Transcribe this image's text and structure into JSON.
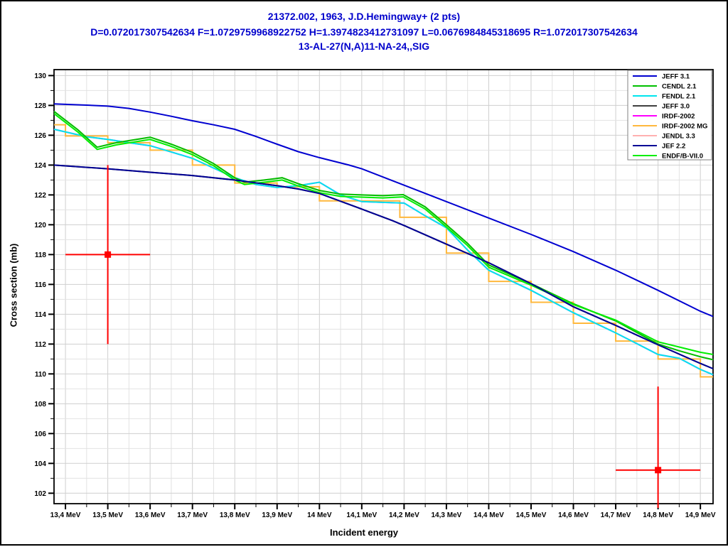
{
  "window": {
    "background": "#FFFFFF",
    "frame_color": "#000000"
  },
  "titles": {
    "line1": "21372.002, 1963, J.D.Hemingway+ (2 pts)",
    "line2": "D=0.072017307542634 F=1.0729759968922752 H=1.3974823412731097 L=0.0676984845318695 R=1.072017307542634",
    "line3": "13-AL-27(N,A)11-NA-24,,SIG",
    "color": "#0000CC"
  },
  "chart_data": {
    "type": "line",
    "title": "21372.002, 1963, J.D.Hemingway+ (2 pts)",
    "xlabel": "Incident energy",
    "ylabel": "Cross section (mb)",
    "xlim": [
      13.373,
      14.93
    ],
    "ylim": [
      101.3,
      130.4
    ],
    "x_unit": "MeV",
    "x_major_ticks": [
      13.4,
      13.5,
      13.6,
      13.7,
      13.8,
      13.9,
      14.0,
      14.1,
      14.2,
      14.3,
      14.4,
      14.5,
      14.6,
      14.7,
      14.8,
      14.9
    ],
    "x_tick_labels": [
      "13,4 MeV",
      "13,5 MeV",
      "13,6 MeV",
      "13,7 MeV",
      "13,8 MeV",
      "13,9 MeV",
      "14 MeV",
      "14,1 MeV",
      "14,2 MeV",
      "14,3 MeV",
      "14,4 MeV",
      "14,5 MeV",
      "14,6 MeV",
      "14,7 MeV",
      "14,8 MeV",
      "14,9 MeV"
    ],
    "x_minor_step": 0.05,
    "y_major_ticks": [
      130,
      128,
      126,
      124,
      122,
      120,
      118,
      116,
      114,
      112,
      110,
      108,
      106,
      104,
      102
    ],
    "y_tick_labels": [
      "130",
      "128",
      "126",
      "124",
      "122",
      "120",
      "118",
      "116",
      "114",
      "112",
      "110",
      "108",
      "106",
      "104",
      "102"
    ],
    "y_minor_step": 1,
    "grid": {
      "on": true,
      "minor_color": "#E2E2E2",
      "major_color": "#CFCFCF"
    },
    "legend": {
      "position": "top-right",
      "background": "#FFFFFF",
      "border_color": "#808080",
      "entries": [
        {
          "label": "JEFF 3.1",
          "color": "#0000D0"
        },
        {
          "label": "CENDL 2.1",
          "color": "#00C000"
        },
        {
          "label": "FENDL 2.1",
          "color": "#00E5EE"
        },
        {
          "label": "JEFF 3.0",
          "color": "#404040"
        },
        {
          "label": "IRDF-2002",
          "color": "#FF00FF"
        },
        {
          "label": "IRDF-2002 MG",
          "color": "#FFB83D"
        },
        {
          "label": "JENDL 3.3",
          "color": "#FFB0B0"
        },
        {
          "label": "JEF 2.2",
          "color": "#000095"
        },
        {
          "label": "ENDF/B-VII.0",
          "color": "#00EE00"
        }
      ]
    },
    "series": [
      {
        "name": "JEFF 3.0",
        "color": "#404040",
        "type": "line",
        "note": "coincides with JEF 2.2",
        "points": [
          [
            13.373,
            124.0
          ],
          [
            13.5,
            123.75
          ],
          [
            13.6,
            123.52
          ],
          [
            13.7,
            123.3
          ],
          [
            13.8,
            123.0
          ],
          [
            13.9,
            122.62
          ],
          [
            13.95,
            122.4
          ],
          [
            14.0,
            122.1
          ],
          [
            14.1,
            121.05
          ],
          [
            14.173,
            120.27
          ],
          [
            14.2,
            119.95
          ],
          [
            14.3,
            118.7
          ],
          [
            14.4,
            117.45
          ],
          [
            14.5,
            116.05
          ],
          [
            14.6,
            114.5
          ],
          [
            14.7,
            113.25
          ],
          [
            14.8,
            111.95
          ],
          [
            14.9,
            110.7
          ],
          [
            14.93,
            110.35
          ]
        ]
      },
      {
        "name": "IRDF-2002",
        "color": "#FF00FF",
        "type": "line",
        "note": "coincides with FENDL 2.1",
        "points": [
          [
            13.373,
            126.4
          ],
          [
            13.45,
            125.9
          ],
          [
            13.5,
            125.72
          ],
          [
            13.55,
            125.5
          ],
          [
            13.6,
            125.3
          ],
          [
            13.65,
            124.88
          ],
          [
            13.7,
            124.45
          ],
          [
            13.75,
            123.8
          ],
          [
            13.8,
            123.15
          ],
          [
            13.85,
            122.7
          ],
          [
            13.9,
            122.5
          ],
          [
            13.95,
            122.62
          ],
          [
            14.0,
            122.85
          ],
          [
            14.05,
            122.0
          ],
          [
            14.1,
            121.55
          ],
          [
            14.15,
            121.5
          ],
          [
            14.2,
            121.45
          ],
          [
            14.25,
            120.6
          ],
          [
            14.3,
            119.8
          ],
          [
            14.35,
            118.3
          ],
          [
            14.4,
            116.95
          ],
          [
            14.5,
            115.6
          ],
          [
            14.6,
            114.1
          ],
          [
            14.7,
            112.75
          ],
          [
            14.8,
            111.3
          ],
          [
            14.85,
            111.05
          ],
          [
            14.9,
            110.3
          ],
          [
            14.93,
            109.95
          ]
        ]
      },
      {
        "name": "JENDL 3.3",
        "color": "#FFB0B0",
        "type": "line",
        "note": "coincides with CENDL 2.1",
        "points": [
          [
            13.373,
            127.6
          ],
          [
            13.43,
            126.35
          ],
          [
            13.475,
            125.2
          ],
          [
            13.52,
            125.5
          ],
          [
            13.6,
            125.87
          ],
          [
            13.65,
            125.4
          ],
          [
            13.7,
            124.85
          ],
          [
            13.75,
            124.1
          ],
          [
            13.8,
            123.15
          ],
          [
            13.823,
            122.85
          ],
          [
            13.87,
            123.0
          ],
          [
            13.912,
            123.15
          ],
          [
            13.95,
            122.75
          ],
          [
            14.0,
            122.3
          ],
          [
            14.05,
            122.05
          ],
          [
            14.1,
            122.0
          ],
          [
            14.15,
            121.95
          ],
          [
            14.198,
            122.02
          ],
          [
            14.25,
            121.2
          ],
          [
            14.3,
            120.0
          ],
          [
            14.35,
            118.75
          ],
          [
            14.4,
            117.3
          ],
          [
            14.5,
            116.05
          ],
          [
            14.6,
            114.7
          ],
          [
            14.7,
            113.55
          ],
          [
            14.8,
            112.0
          ],
          [
            14.85,
            111.55
          ],
          [
            14.9,
            111.15
          ],
          [
            14.93,
            110.95
          ]
        ]
      },
      {
        "name": "IRDF-2002 MG",
        "color": "#FFB83D",
        "type": "step",
        "edges": [
          13.373,
          13.4,
          13.5,
          13.6,
          13.7,
          13.8,
          13.9,
          14.0,
          14.19,
          14.3,
          14.4,
          14.5,
          14.6,
          14.7,
          14.8,
          14.9,
          14.93
        ],
        "values": [
          126.7,
          125.95,
          125.5,
          125.0,
          124.0,
          122.8,
          122.55,
          121.6,
          120.5,
          118.1,
          116.2,
          114.8,
          113.4,
          112.2,
          111.0,
          109.8
        ]
      },
      {
        "name": "FENDL 2.1",
        "color": "#00E5EE",
        "type": "line",
        "points": [
          [
            13.373,
            126.4
          ],
          [
            13.45,
            125.9
          ],
          [
            13.5,
            125.72
          ],
          [
            13.55,
            125.5
          ],
          [
            13.6,
            125.3
          ],
          [
            13.65,
            124.88
          ],
          [
            13.7,
            124.45
          ],
          [
            13.75,
            123.8
          ],
          [
            13.8,
            123.15
          ],
          [
            13.85,
            122.7
          ],
          [
            13.9,
            122.5
          ],
          [
            13.95,
            122.62
          ],
          [
            14.0,
            122.85
          ],
          [
            14.05,
            122.0
          ],
          [
            14.1,
            121.55
          ],
          [
            14.15,
            121.5
          ],
          [
            14.2,
            121.45
          ],
          [
            14.25,
            120.6
          ],
          [
            14.3,
            119.8
          ],
          [
            14.35,
            118.3
          ],
          [
            14.4,
            116.95
          ],
          [
            14.5,
            115.6
          ],
          [
            14.6,
            114.1
          ],
          [
            14.7,
            112.75
          ],
          [
            14.8,
            111.3
          ],
          [
            14.85,
            111.05
          ],
          [
            14.9,
            110.3
          ],
          [
            14.93,
            109.95
          ]
        ]
      },
      {
        "name": "CENDL 2.1",
        "color": "#00C000",
        "type": "line",
        "points": [
          [
            13.373,
            127.6
          ],
          [
            13.43,
            126.35
          ],
          [
            13.475,
            125.2
          ],
          [
            13.52,
            125.5
          ],
          [
            13.6,
            125.87
          ],
          [
            13.65,
            125.4
          ],
          [
            13.7,
            124.85
          ],
          [
            13.75,
            124.1
          ],
          [
            13.8,
            123.15
          ],
          [
            13.823,
            122.85
          ],
          [
            13.87,
            123.0
          ],
          [
            13.912,
            123.15
          ],
          [
            13.95,
            122.75
          ],
          [
            14.0,
            122.3
          ],
          [
            14.05,
            122.05
          ],
          [
            14.1,
            122.0
          ],
          [
            14.15,
            121.95
          ],
          [
            14.198,
            122.02
          ],
          [
            14.25,
            121.2
          ],
          [
            14.3,
            120.0
          ],
          [
            14.35,
            118.75
          ],
          [
            14.4,
            117.3
          ],
          [
            14.5,
            116.05
          ],
          [
            14.6,
            114.7
          ],
          [
            14.7,
            113.55
          ],
          [
            14.8,
            112.0
          ],
          [
            14.85,
            111.55
          ],
          [
            14.9,
            111.15
          ],
          [
            14.93,
            110.95
          ]
        ]
      },
      {
        "name": "ENDF/B-VII.0",
        "color": "#00EE00",
        "type": "line",
        "points": [
          [
            13.373,
            127.45
          ],
          [
            13.43,
            126.2
          ],
          [
            13.475,
            125.05
          ],
          [
            13.52,
            125.35
          ],
          [
            13.6,
            125.72
          ],
          [
            13.65,
            125.25
          ],
          [
            13.7,
            124.7
          ],
          [
            13.75,
            123.95
          ],
          [
            13.8,
            123.0
          ],
          [
            13.823,
            122.7
          ],
          [
            13.87,
            122.85
          ],
          [
            13.912,
            123.0
          ],
          [
            13.95,
            122.6
          ],
          [
            14.0,
            122.15
          ],
          [
            14.05,
            121.9
          ],
          [
            14.1,
            121.85
          ],
          [
            14.15,
            121.8
          ],
          [
            14.198,
            121.87
          ],
          [
            14.25,
            121.05
          ],
          [
            14.3,
            119.85
          ],
          [
            14.35,
            118.6
          ],
          [
            14.4,
            117.15
          ],
          [
            14.5,
            115.95
          ],
          [
            14.6,
            114.65
          ],
          [
            14.7,
            113.6
          ],
          [
            14.8,
            112.15
          ],
          [
            14.85,
            111.8
          ],
          [
            14.9,
            111.45
          ],
          [
            14.93,
            111.3
          ]
        ]
      },
      {
        "name": "JEFF 3.1",
        "color": "#0000D0",
        "type": "line",
        "points": [
          [
            13.373,
            128.1
          ],
          [
            13.45,
            128.02
          ],
          [
            13.5,
            127.95
          ],
          [
            13.55,
            127.8
          ],
          [
            13.6,
            127.55
          ],
          [
            13.65,
            127.27
          ],
          [
            13.7,
            126.97
          ],
          [
            13.75,
            126.7
          ],
          [
            13.8,
            126.4
          ],
          [
            13.85,
            125.92
          ],
          [
            13.9,
            125.4
          ],
          [
            13.95,
            124.9
          ],
          [
            14.0,
            124.5
          ],
          [
            14.07,
            124.0
          ],
          [
            14.1,
            123.75
          ],
          [
            14.2,
            122.65
          ],
          [
            14.3,
            121.55
          ],
          [
            14.4,
            120.45
          ],
          [
            14.5,
            119.35
          ],
          [
            14.6,
            118.2
          ],
          [
            14.7,
            116.95
          ],
          [
            14.8,
            115.6
          ],
          [
            14.9,
            114.2
          ],
          [
            14.93,
            113.85
          ]
        ]
      },
      {
        "name": "JEF 2.2",
        "color": "#000095",
        "type": "line",
        "points": [
          [
            13.373,
            124.0
          ],
          [
            13.5,
            123.75
          ],
          [
            13.6,
            123.52
          ],
          [
            13.7,
            123.3
          ],
          [
            13.8,
            123.0
          ],
          [
            13.9,
            122.62
          ],
          [
            13.95,
            122.4
          ],
          [
            14.0,
            122.1
          ],
          [
            14.1,
            121.05
          ],
          [
            14.173,
            120.27
          ],
          [
            14.2,
            119.95
          ],
          [
            14.3,
            118.7
          ],
          [
            14.4,
            117.45
          ],
          [
            14.5,
            116.05
          ],
          [
            14.6,
            114.5
          ],
          [
            14.7,
            113.25
          ],
          [
            14.8,
            111.95
          ],
          [
            14.9,
            110.7
          ],
          [
            14.93,
            110.35
          ]
        ]
      }
    ],
    "experimental_points": {
      "dataset": "21372.002, 1963, J.D.Hemingway+",
      "color": "#FF0000",
      "points": [
        {
          "x": 13.5,
          "y": 118.0,
          "x_err": 0.1,
          "y_err_plus": 6.0,
          "y_err_minus": 6.0
        },
        {
          "x": 14.8,
          "y": 103.55,
          "x_err": 0.1,
          "y_err_plus": 5.6,
          "y_err_minus": 5.6
        }
      ]
    }
  }
}
